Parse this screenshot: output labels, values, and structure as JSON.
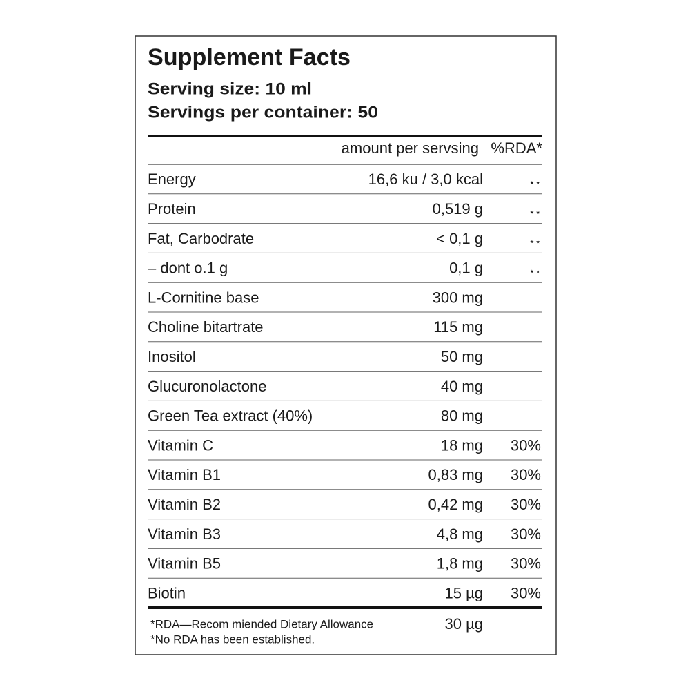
{
  "header": {
    "title": "Supplement Facts",
    "serving_size": "Serving size: 10 ml",
    "servings_per_container": "Servings per container: 50"
  },
  "table": {
    "columns": [
      "amount per servsing",
      "%RDA*"
    ],
    "rows": [
      {
        "name": "Energy",
        "amount": "16,6 ku / 3,0 kcal",
        "rda": "⋆⋆"
      },
      {
        "name": "Protein",
        "amount": "0,519 g",
        "rda": "⋆⋆"
      },
      {
        "name": "Fat, Carbodrate",
        "amount": "< 0,1 g",
        "rda": "⋆⋆"
      },
      {
        "name": "– dont o.1 g",
        "amount": "0,1 g",
        "rda": "⋆⋆"
      },
      {
        "name": "L-Cornitine base",
        "amount": "300 mg"
      },
      {
        "name": "Choline bitartrate",
        "amount": "115 mg"
      },
      {
        "name": "Inositol",
        "amount": "50 mg"
      },
      {
        "name": "Glucuronolactone",
        "amount": "40 mg"
      },
      {
        "name": "Green Tea extract (40%)",
        "amount": "80 mg"
      },
      {
        "name": "Vitamin C",
        "amount": "18 mg",
        "rda": "30%"
      },
      {
        "name": "Vitamin B1",
        "amount": "0,83 mg",
        "rda": "30%"
      },
      {
        "name": "Vitamin B2",
        "amount": "0,42 mg",
        "rda": "30%"
      },
      {
        "name": "Vitamin B3",
        "amount": "4,8 mg",
        "rda": "30%"
      },
      {
        "name": "Vitamin B5",
        "amount": "1,8 mg",
        "rda": "30%"
      },
      {
        "name": "Biotin",
        "amount": "15 µg",
        "rda": "30%"
      }
    ]
  },
  "footer": {
    "notes": [
      "*RDA—Recom miended Dietary Allowance",
      "*No RDA has been established."
    ],
    "amount": "30 µg"
  }
}
